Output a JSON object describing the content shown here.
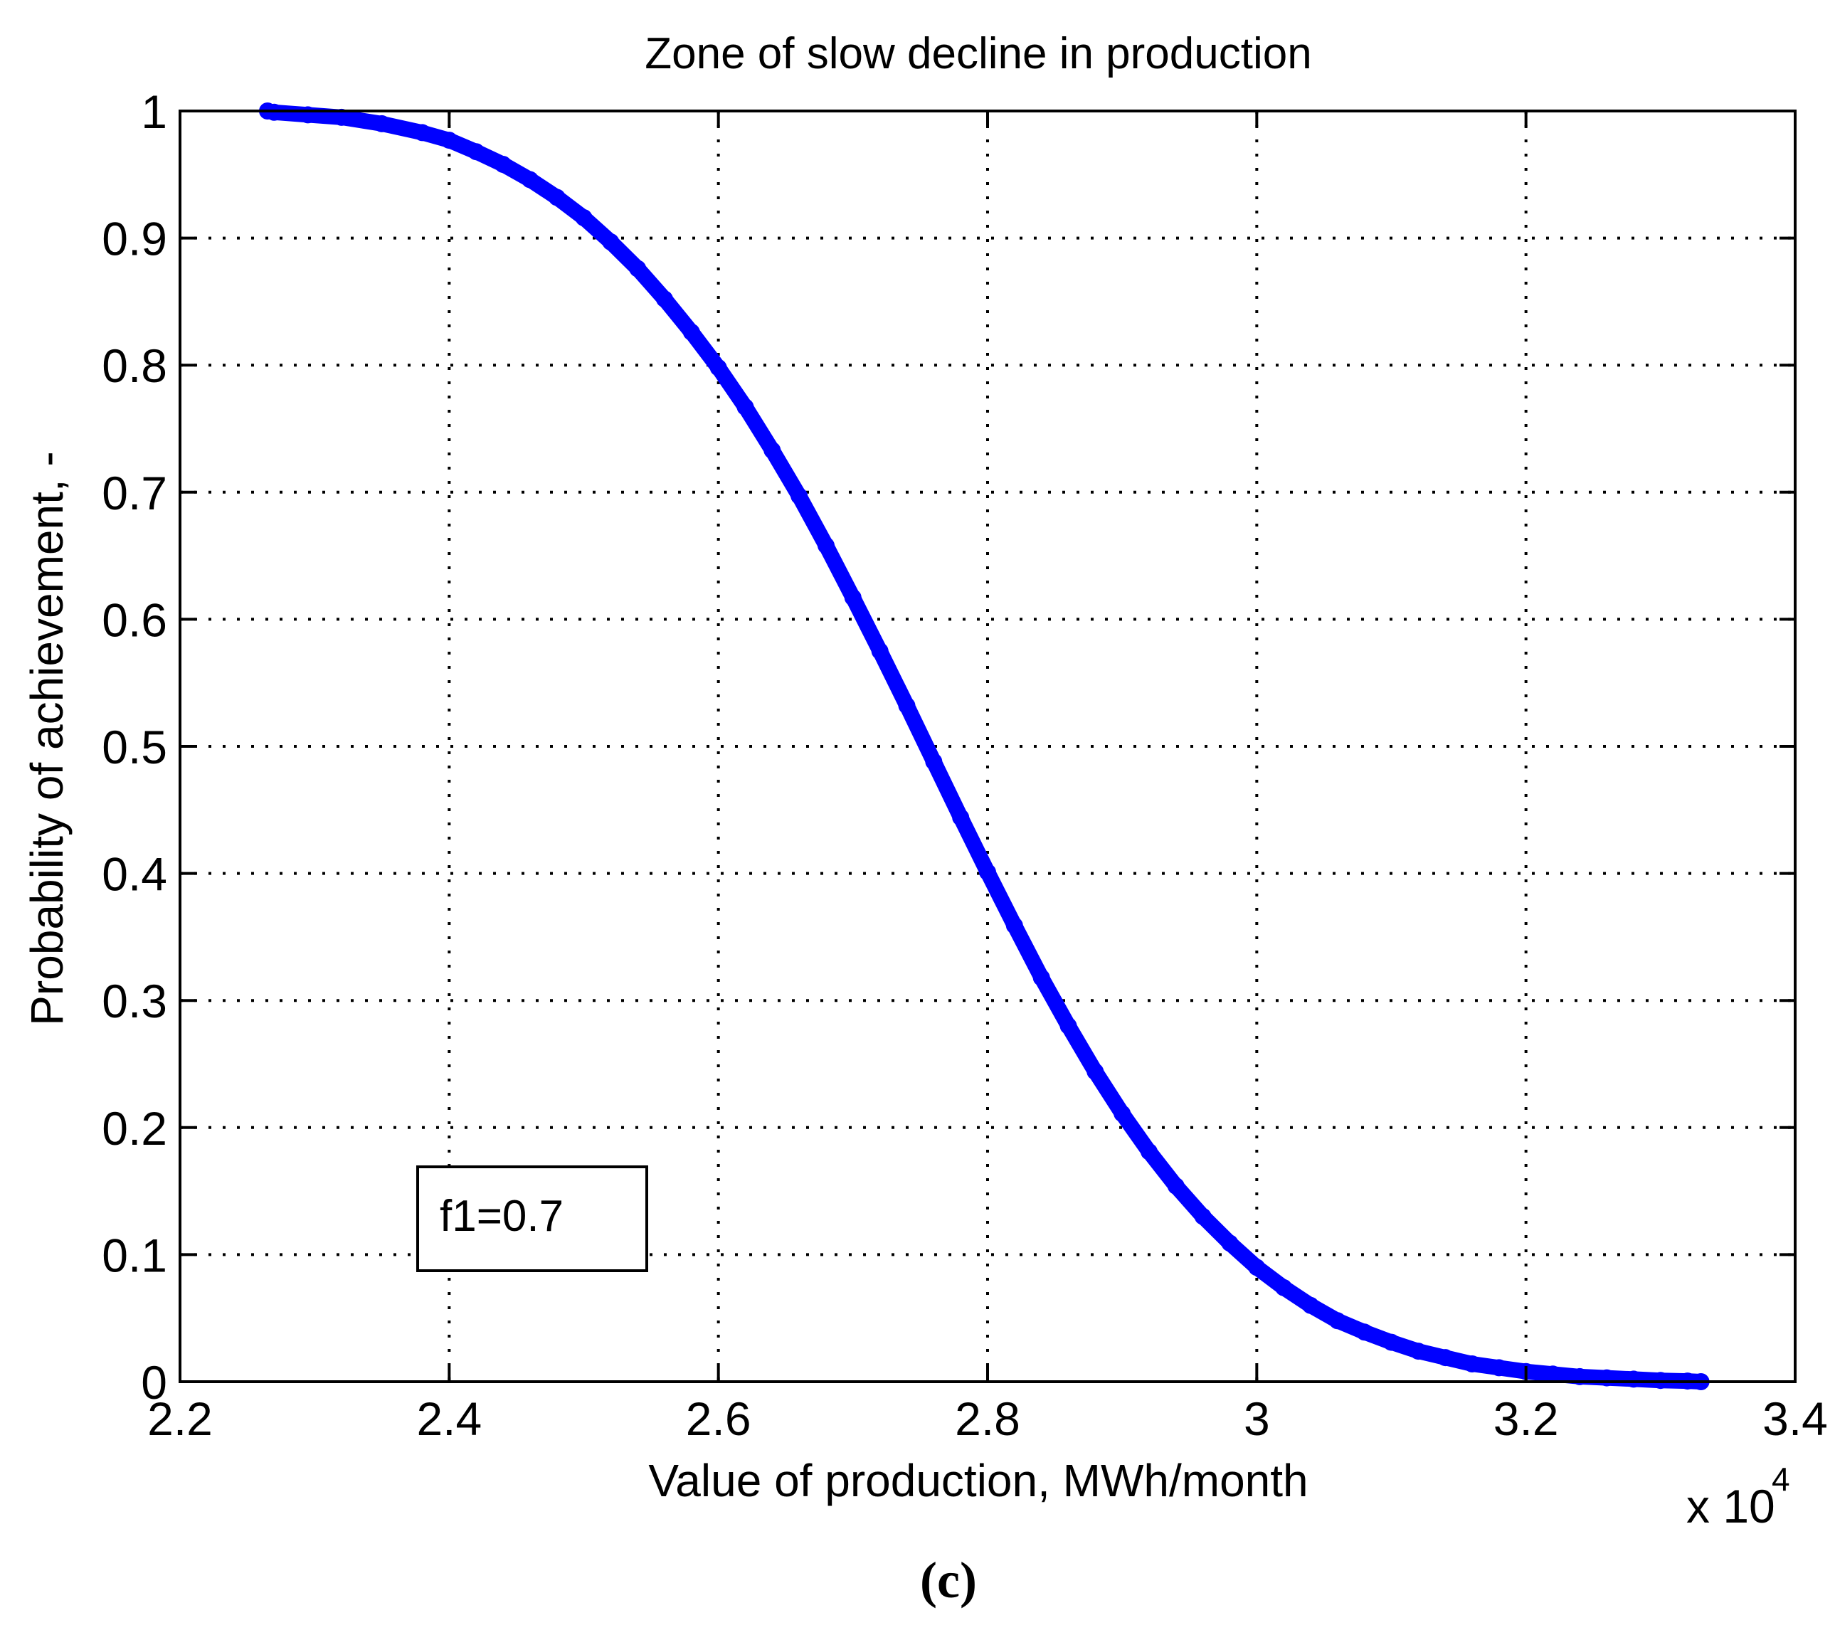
{
  "chart_data": {
    "type": "scatter",
    "title": "Zone of slow decline in production",
    "xlabel": "Value of production, MWh/month",
    "ylabel": "Probability of achievement, -",
    "x_multiplier": "x 10",
    "x_multiplier_exponent": "4",
    "xlim": [
      2.2,
      3.4
    ],
    "ylim": [
      0,
      1
    ],
    "xticks": [
      2.2,
      2.4,
      2.6,
      2.8,
      3.0,
      3.2,
      3.4
    ],
    "xtick_labels": [
      "2.2",
      "2.4",
      "2.6",
      "2.8",
      "3",
      "3.2",
      "3.4"
    ],
    "yticks": [
      0,
      0.1,
      0.2,
      0.3,
      0.4,
      0.5,
      0.6,
      0.7,
      0.8,
      0.9,
      1
    ],
    "ytick_labels": [
      "0",
      "0.1",
      "0.2",
      "0.3",
      "0.4",
      "0.5",
      "0.6",
      "0.7",
      "0.8",
      "0.9",
      "1"
    ],
    "grid": true,
    "series": [
      {
        "name": "probability",
        "color": "#0000ff",
        "x": [
          2.265,
          2.27,
          2.295,
          2.32,
          2.35,
          2.38,
          2.4,
          2.42,
          2.44,
          2.46,
          2.48,
          2.5,
          2.52,
          2.54,
          2.56,
          2.58,
          2.6,
          2.62,
          2.64,
          2.66,
          2.68,
          2.7,
          2.72,
          2.74,
          2.76,
          2.78,
          2.8,
          2.82,
          2.84,
          2.86,
          2.88,
          2.9,
          2.92,
          2.94,
          2.96,
          2.98,
          3.0,
          3.02,
          3.04,
          3.06,
          3.08,
          3.1,
          3.12,
          3.14,
          3.16,
          3.18,
          3.2,
          3.22,
          3.24,
          3.26,
          3.28,
          3.3,
          3.32,
          3.33
        ],
        "y": [
          1.0,
          0.999,
          0.997,
          0.995,
          0.99,
          0.983,
          0.977,
          0.968,
          0.958,
          0.946,
          0.932,
          0.916,
          0.897,
          0.876,
          0.852,
          0.826,
          0.798,
          0.767,
          0.733,
          0.697,
          0.658,
          0.617,
          0.575,
          0.532,
          0.488,
          0.444,
          0.401,
          0.359,
          0.318,
          0.28,
          0.244,
          0.211,
          0.181,
          0.154,
          0.13,
          0.109,
          0.09,
          0.074,
          0.06,
          0.048,
          0.039,
          0.031,
          0.024,
          0.019,
          0.014,
          0.011,
          0.008,
          0.006,
          0.004,
          0.003,
          0.002,
          0.001,
          0.0005,
          0.0
        ]
      }
    ],
    "annotation": "f1=0.7",
    "caption": "(c)"
  }
}
